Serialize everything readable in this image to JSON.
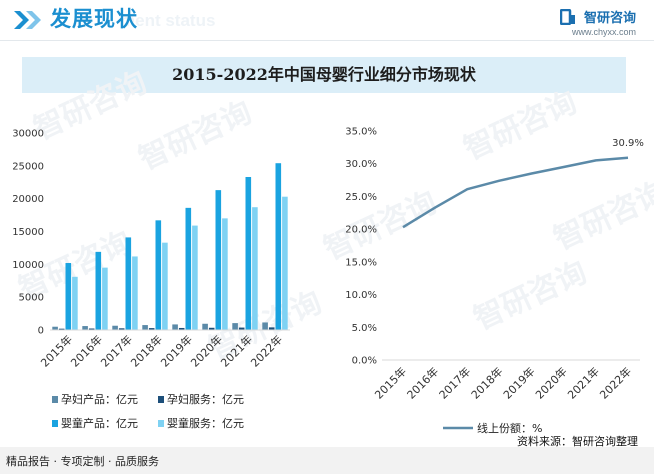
{
  "header": {
    "title": "发展现状",
    "watermark": "ment status",
    "brand_name": "智研咨询",
    "brand_url": "www.chyxx.com"
  },
  "title": "2015-2022年中国母婴行业细分市场现状",
  "watermark_text": "智研咨询",
  "footer": {
    "left": "精品报告 · 专项定制 · 品质服务",
    "source": "资料来源：智研咨询整理"
  },
  "colors": {
    "maternal_products": "#5b8aa8",
    "maternal_services": "#1d4f7a",
    "infant_products": "#1aa3e0",
    "infant_services": "#7fd2f3",
    "online_share": "#5b8aa8",
    "title_band": "#dbeef8",
    "header_blue": "#1b8fd0"
  },
  "chart_data": [
    {
      "type": "bar",
      "categories": [
        "2015年",
        "2016年",
        "2017年",
        "2018年",
        "2019年",
        "2020年",
        "2021年",
        "2022年"
      ],
      "ylim": [
        0,
        30000
      ],
      "yticks": [
        0,
        5000,
        10000,
        15000,
        20000,
        25000,
        30000
      ],
      "grid": false,
      "legend_position": "bottom",
      "series": [
        {
          "name": "孕妇产品：亿元",
          "values": [
            500,
            600,
            650,
            750,
            850,
            950,
            1050,
            1150
          ]
        },
        {
          "name": "孕妇服务：亿元",
          "values": [
            200,
            230,
            260,
            290,
            310,
            340,
            370,
            400
          ]
        },
        {
          "name": "婴童产品：亿元",
          "values": [
            10200,
            11900,
            14100,
            16700,
            18600,
            21300,
            23300,
            25400
          ]
        },
        {
          "name": "婴童服务：亿元",
          "values": [
            8100,
            9500,
            11200,
            13300,
            15900,
            17000,
            18700,
            20300
          ]
        }
      ]
    },
    {
      "type": "line",
      "categories": [
        "2015年",
        "2016年",
        "2017年",
        "2018年",
        "2019年",
        "2020年",
        "2021年",
        "2022年"
      ],
      "ylim": [
        0,
        35
      ],
      "yticks": [
        "0.0%",
        "5.0%",
        "10.0%",
        "15.0%",
        "20.0%",
        "25.0%",
        "30.0%",
        "35.0%"
      ],
      "grid": false,
      "legend_position": "bottom",
      "series": [
        {
          "name": "线上份额：%",
          "values": [
            20.3,
            23.3,
            26.1,
            27.4,
            28.5,
            29.5,
            30.5,
            30.9
          ]
        }
      ],
      "annotations": [
        {
          "category": "2022年",
          "text": "30.9%"
        }
      ]
    }
  ]
}
